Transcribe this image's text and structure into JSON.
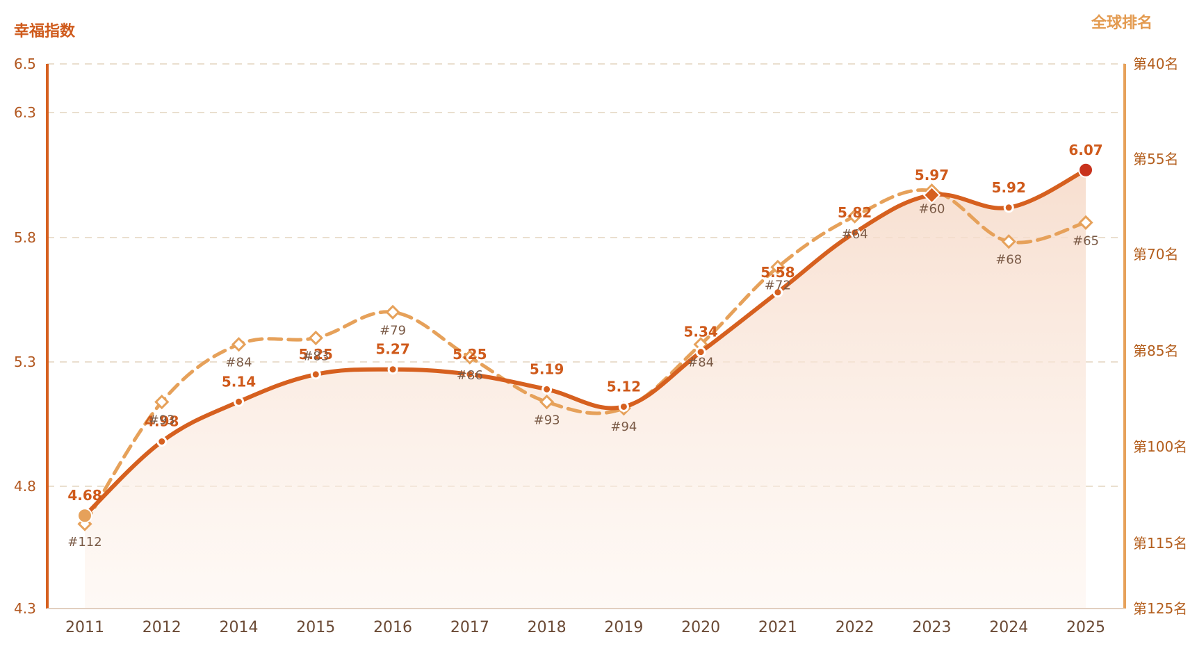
{
  "chart_data": {
    "type": "line",
    "left_axis": {
      "title": "幸福指数",
      "ylim": [
        4.3,
        6.5
      ],
      "ticks": [
        "6.5",
        "6.3",
        "5.8",
        "5.3",
        "4.8",
        "4.3"
      ],
      "tick_values": [
        6.5,
        6.3,
        5.8,
        5.3,
        4.8,
        4.3
      ]
    },
    "right_axis": {
      "title": "全球排名",
      "ticks": [
        "第40名",
        "第55名",
        "第70名",
        "第85名",
        "第100名",
        "第115名",
        "第125名"
      ],
      "tick_values": [
        40,
        55,
        70,
        85,
        100,
        115,
        125
      ]
    },
    "categories": [
      "2011",
      "2012",
      "2014",
      "2015",
      "2016",
      "2017",
      "2018",
      "2019",
      "2020",
      "2021",
      "2022",
      "2023",
      "2024",
      "2025"
    ],
    "series": [
      {
        "values": [
          4.68,
          4.98,
          5.14,
          5.25,
          5.27,
          5.25,
          5.19,
          5.12,
          5.34,
          5.58,
          5.82,
          5.97,
          5.92,
          6.07
        ],
        "labels": [
          "4.68",
          "4.98",
          "5.14",
          "5.25",
          "5.27",
          "5.25",
          "5.19",
          "5.12",
          "5.34",
          "5.58",
          "5.82",
          "5.97",
          "5.92",
          "6.07"
        ],
        "color": "#d6601f"
      },
      {
        "values": [
          112,
          93,
          84,
          83,
          79,
          86,
          93,
          94,
          84,
          72,
          64,
          60,
          68,
          65
        ],
        "labels": [
          "#112",
          "#93",
          "#84",
          "#83",
          "#79",
          "#86",
          "#93",
          "#94",
          "#84",
          "#72",
          "#64",
          "#60",
          "#68",
          "#65"
        ],
        "color": "#e6a15a"
      }
    ],
    "grid": true,
    "colors": {
      "primary": "#d6601f",
      "secondary": "#e6a15a",
      "highlight_point": "#c8321c",
      "grid": "#eadfcf",
      "area_top": "#f6d9c7",
      "area_bottom": "#fdf3ec"
    }
  }
}
